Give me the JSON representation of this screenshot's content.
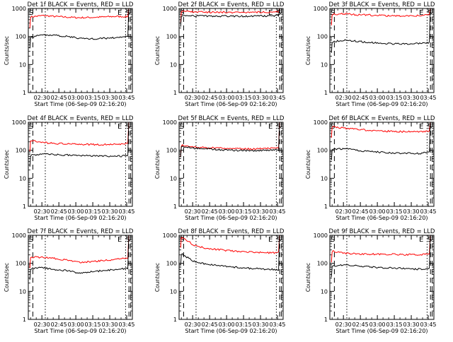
{
  "figure": {
    "shared": {
      "ylabel": "Counts/sec",
      "yticks": [
        "1",
        "10",
        "100",
        "1000"
      ],
      "ytick_values": [
        1,
        10,
        100,
        1000
      ],
      "ylim": [
        1,
        1000
      ],
      "yscale": "log",
      "xticks": [
        "02:30",
        "02:45",
        "03:00",
        "03:15",
        "03:30",
        "03:45"
      ],
      "xlim": [
        "02:18",
        "03:50"
      ],
      "xlabel": "Start Time (06-Sep-09 02:16:20)",
      "marker_left": "S",
      "marker_right_e": "E",
      "marker_right_s": "S",
      "series_colors": {
        "events": "#000000",
        "lld": "#ff0000"
      }
    }
  },
  "chart_data": [
    {
      "type": "line",
      "title": "Det 1f BLACK = Events, RED = LLD",
      "series": [
        {
          "color": "#ff0000",
          "values": [
            500,
            560,
            520,
            490,
            470,
            480,
            500,
            520,
            510
          ]
        },
        {
          "color": "#000000",
          "values": [
            95,
            115,
            110,
            100,
            88,
            82,
            86,
            92,
            98
          ]
        }
      ]
    },
    {
      "type": "line",
      "title": "Det 2f BLACK = Events, RED = LLD",
      "series": [
        {
          "color": "#ff0000",
          "values": [
            800,
            760,
            740,
            730,
            730,
            735,
            740,
            745,
            760
          ]
        },
        {
          "color": "#000000",
          "values": [
            560,
            545,
            540,
            535,
            530,
            530,
            535,
            540,
            550
          ]
        }
      ]
    },
    {
      "type": "line",
      "title": "Det 3f BLACK = Events, RED = LLD",
      "series": [
        {
          "color": "#ff0000",
          "values": [
            620,
            650,
            600,
            580,
            560,
            550,
            540,
            560,
            580
          ]
        },
        {
          "color": "#000000",
          "values": [
            65,
            75,
            68,
            62,
            58,
            55,
            54,
            56,
            60
          ]
        }
      ]
    },
    {
      "type": "line",
      "title": "Det 4f BLACK = Events, RED = LLD",
      "series": [
        {
          "color": "#ff0000",
          "values": [
            230,
            190,
            175,
            170,
            165,
            160,
            160,
            160,
            175
          ]
        },
        {
          "color": "#000000",
          "values": [
            65,
            75,
            70,
            68,
            65,
            63,
            62,
            60,
            65
          ]
        }
      ]
    },
    {
      "type": "line",
      "title": "Det 5f BLACK = Events, RED = LLD",
      "series": [
        {
          "color": "#ff0000",
          "values": [
            150,
            135,
            125,
            120,
            115,
            112,
            112,
            115,
            118
          ]
        },
        {
          "color": "#000000",
          "values": [
            140,
            120,
            115,
            105,
            100,
            98,
            98,
            100,
            102
          ]
        }
      ]
    },
    {
      "type": "line",
      "title": "Det 6f BLACK = Events, RED = LLD",
      "series": [
        {
          "color": "#ff0000",
          "values": [
            700,
            620,
            560,
            520,
            490,
            470,
            460,
            450,
            480
          ]
        },
        {
          "color": "#000000",
          "values": [
            110,
            115,
            100,
            90,
            85,
            80,
            78,
            76,
            85
          ]
        }
      ]
    },
    {
      "type": "line",
      "title": "Det 7f BLACK = Events, RED = LLD",
      "series": [
        {
          "color": "#ff0000",
          "values": [
            170,
            160,
            150,
            130,
            110,
            115,
            125,
            140,
            155
          ]
        },
        {
          "color": "#000000",
          "values": [
            65,
            70,
            60,
            55,
            45,
            50,
            55,
            60,
            65
          ]
        }
      ]
    },
    {
      "type": "line",
      "title": "Det 8f BLACK = Events, RED = LLD",
      "series": [
        {
          "color": "#ff0000",
          "values": [
            900,
            450,
            350,
            310,
            280,
            260,
            250,
            240,
            240
          ]
        },
        {
          "color": "#000000",
          "values": [
            220,
            120,
            95,
            85,
            75,
            70,
            65,
            62,
            60
          ]
        }
      ]
    },
    {
      "type": "line",
      "title": "Det 9f BLACK = Events, RED = LLD",
      "series": [
        {
          "color": "#ff0000",
          "values": [
            270,
            230,
            220,
            215,
            210,
            210,
            205,
            205,
            210
          ]
        },
        {
          "color": "#000000",
          "values": [
            80,
            90,
            82,
            75,
            70,
            68,
            65,
            62,
            66
          ]
        }
      ]
    }
  ]
}
